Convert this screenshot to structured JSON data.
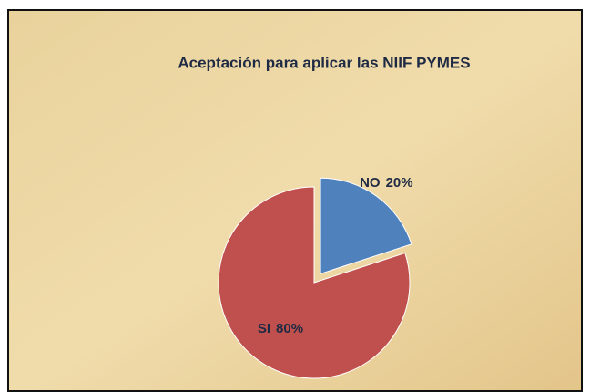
{
  "chart_data": {
    "type": "pie",
    "title": "Aceptación para aplicar  las NIIF PYMES",
    "categories": [
      "NO",
      "SI"
    ],
    "values": [
      20,
      80
    ],
    "value_labels": [
      "20%",
      "80%"
    ],
    "colors": [
      "#4f81bd",
      "#c0504d"
    ],
    "explode": [
      true,
      false
    ]
  }
}
